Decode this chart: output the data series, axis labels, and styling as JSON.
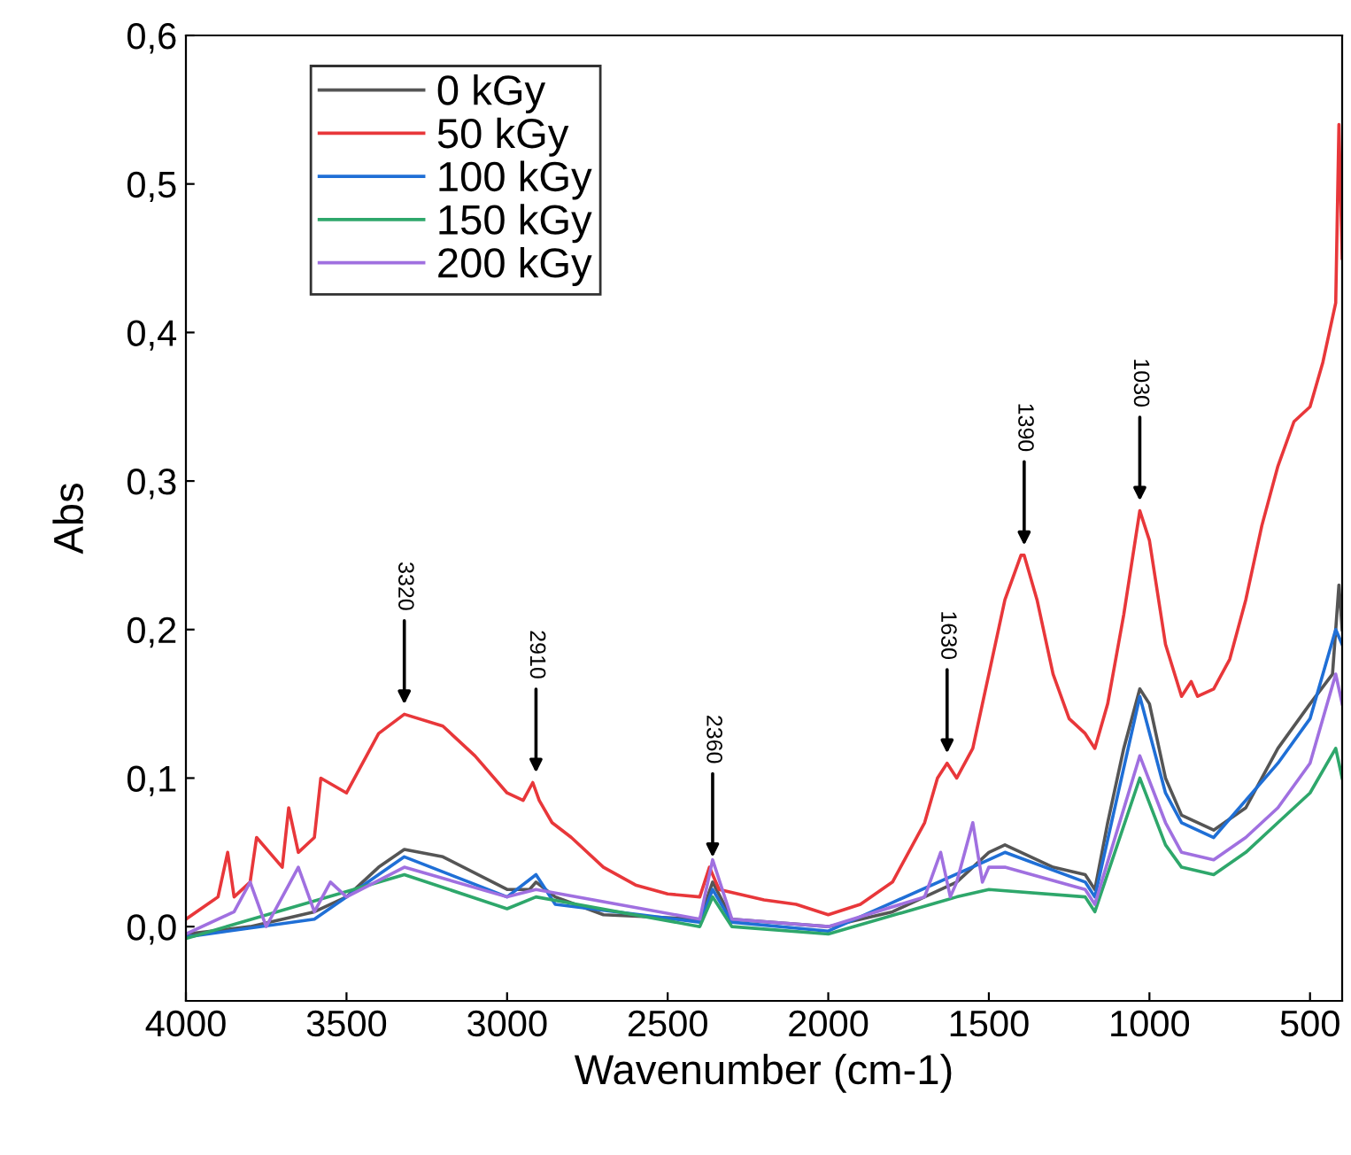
{
  "chart_data": {
    "type": "line",
    "xlabel": "Wavenumber (cm-1)",
    "ylabel": "Abs",
    "legend": "top left",
    "grid": false,
    "xlim": [
      4000,
      400
    ],
    "xticks": [
      4000,
      3500,
      3000,
      2500,
      2000,
      1500,
      1000,
      500
    ],
    "ylim": [
      -0.05,
      0.6
    ],
    "yticks": [
      {
        "value": 0,
        "label": "0,0"
      },
      {
        "value": 0.1,
        "label": "0,1"
      },
      {
        "value": 0.2,
        "label": "0,2"
      },
      {
        "value": 0.3,
        "label": "0,3"
      },
      {
        "value": 0.4,
        "label": "0,4"
      },
      {
        "value": 0.5,
        "label": "0,5"
      },
      {
        "value": 0.6,
        "label": "0,6"
      }
    ],
    "annotations": [
      {
        "text": "3320",
        "x": 3320,
        "y": 0.143
      },
      {
        "text": "2910",
        "x": 2910,
        "y": 0.097
      },
      {
        "text": "2360",
        "x": 2360,
        "y": 0.04
      },
      {
        "text": "1630",
        "x": 1630,
        "y": 0.11
      },
      {
        "text": "1390",
        "x": 1390,
        "y": 0.25
      },
      {
        "text": "1030",
        "x": 1030,
        "y": 0.28
      }
    ],
    "series": [
      {
        "name": "0 kGy",
        "color": "#555555",
        "x": [
          4000,
          3800,
          3600,
          3500,
          3400,
          3320,
          3200,
          3000,
          2930,
          2910,
          2850,
          2700,
          2400,
          2360,
          2300,
          2000,
          1800,
          1700,
          1600,
          1500,
          1450,
          1300,
          1200,
          1170,
          1130,
          1080,
          1030,
          1000,
          950,
          900,
          800,
          700,
          650,
          600,
          500,
          430,
          410,
          400
        ],
        "values": [
          -0.005,
          0.0,
          0.01,
          0.02,
          0.04,
          0.052,
          0.047,
          0.025,
          0.025,
          0.03,
          0.02,
          0.008,
          0.005,
          0.03,
          0.005,
          0.0,
          0.01,
          0.02,
          0.03,
          0.05,
          0.055,
          0.04,
          0.035,
          0.025,
          0.07,
          0.12,
          0.16,
          0.15,
          0.1,
          0.075,
          0.065,
          0.08,
          0.1,
          0.12,
          0.15,
          0.17,
          0.23,
          0.2
        ]
      },
      {
        "name": "50 kGy",
        "color": "#e8373a",
        "x": [
          4000,
          3900,
          3870,
          3850,
          3800,
          3780,
          3700,
          3680,
          3650,
          3600,
          3580,
          3500,
          3400,
          3320,
          3200,
          3100,
          3000,
          2950,
          2920,
          2900,
          2860,
          2800,
          2700,
          2600,
          2500,
          2400,
          2370,
          2340,
          2200,
          2100,
          2000,
          1900,
          1800,
          1750,
          1700,
          1660,
          1630,
          1600,
          1550,
          1500,
          1450,
          1400,
          1390,
          1350,
          1300,
          1250,
          1200,
          1170,
          1130,
          1080,
          1030,
          1000,
          950,
          900,
          870,
          850,
          800,
          750,
          700,
          650,
          600,
          550,
          500,
          460,
          420,
          410,
          400
        ],
        "values": [
          0.005,
          0.02,
          0.05,
          0.02,
          0.03,
          0.06,
          0.04,
          0.08,
          0.05,
          0.06,
          0.1,
          0.09,
          0.13,
          0.143,
          0.135,
          0.115,
          0.09,
          0.085,
          0.097,
          0.085,
          0.07,
          0.06,
          0.04,
          0.028,
          0.022,
          0.02,
          0.04,
          0.025,
          0.018,
          0.015,
          0.008,
          0.015,
          0.03,
          0.05,
          0.07,
          0.1,
          0.11,
          0.1,
          0.12,
          0.17,
          0.22,
          0.25,
          0.25,
          0.22,
          0.17,
          0.14,
          0.13,
          0.12,
          0.15,
          0.21,
          0.28,
          0.26,
          0.19,
          0.155,
          0.165,
          0.155,
          0.16,
          0.18,
          0.22,
          0.27,
          0.31,
          0.34,
          0.35,
          0.38,
          0.42,
          0.54,
          0.45
        ]
      },
      {
        "name": "100 kGy",
        "color": "#1f6fd6",
        "x": [
          4000,
          3600,
          3320,
          3000,
          2910,
          2850,
          2400,
          2360,
          2300,
          2000,
          1500,
          1450,
          1200,
          1170,
          1030,
          950,
          900,
          800,
          600,
          500,
          420,
          400
        ],
        "values": [
          -0.007,
          0.005,
          0.047,
          0.02,
          0.035,
          0.015,
          0.003,
          0.025,
          0.003,
          -0.003,
          0.045,
          0.05,
          0.03,
          0.02,
          0.155,
          0.09,
          0.07,
          0.06,
          0.11,
          0.14,
          0.2,
          0.19
        ]
      },
      {
        "name": "150 kGy",
        "color": "#2ea76b",
        "x": [
          4000,
          3320,
          3000,
          2910,
          2400,
          2360,
          2300,
          2000,
          1600,
          1500,
          1200,
          1170,
          1030,
          950,
          900,
          800,
          700,
          600,
          500,
          420,
          400
        ],
        "values": [
          -0.008,
          0.035,
          0.012,
          0.02,
          0.0,
          0.02,
          0.0,
          -0.005,
          0.02,
          0.025,
          0.02,
          0.01,
          0.1,
          0.055,
          0.04,
          0.035,
          0.05,
          0.07,
          0.09,
          0.12,
          0.1
        ]
      },
      {
        "name": "200 kGy",
        "color": "#a070e0",
        "x": [
          4000,
          3850,
          3800,
          3750,
          3650,
          3600,
          3550,
          3500,
          3320,
          3000,
          2910,
          2400,
          2360,
          2300,
          2000,
          1700,
          1650,
          1620,
          1600,
          1550,
          1520,
          1500,
          1450,
          1200,
          1170,
          1030,
          950,
          900,
          800,
          700,
          600,
          500,
          420,
          400
        ],
        "values": [
          -0.005,
          0.01,
          0.03,
          0.0,
          0.04,
          0.01,
          0.03,
          0.02,
          0.04,
          0.02,
          0.025,
          0.005,
          0.045,
          0.005,
          0.0,
          0.02,
          0.05,
          0.02,
          0.03,
          0.07,
          0.03,
          0.04,
          0.04,
          0.025,
          0.015,
          0.115,
          0.07,
          0.05,
          0.045,
          0.06,
          0.08,
          0.11,
          0.17,
          0.15
        ]
      }
    ]
  }
}
